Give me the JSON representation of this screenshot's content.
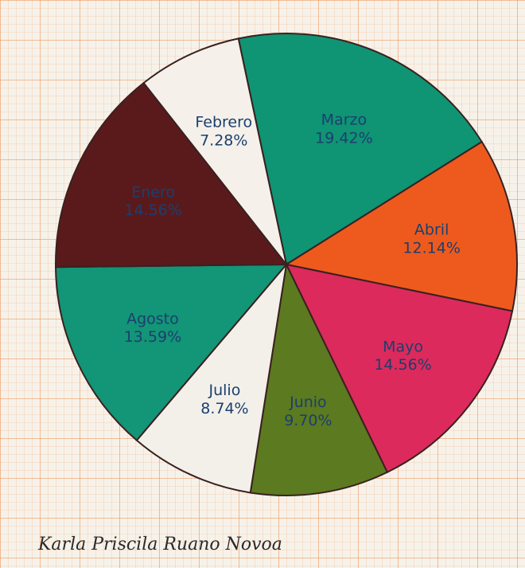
{
  "chart_data": {
    "type": "pie",
    "title": "",
    "slices": [
      {
        "label": "Marzo",
        "percent_text": "19.42%",
        "value": 19.42,
        "color": "#0f9474"
      },
      {
        "label": "Abril",
        "percent_text": "12.14%",
        "value": 12.14,
        "color": "#ee5a1e"
      },
      {
        "label": "Mayo",
        "percent_text": "14.56%",
        "value": 14.56,
        "color": "#dc2a5c"
      },
      {
        "label": "Junio",
        "percent_text": "9.70%",
        "value": 9.7,
        "color": "#5c7a1f"
      },
      {
        "label": "Julio",
        "percent_text": "8.74%",
        "value": 8.74,
        "color": "#f3f0ea"
      },
      {
        "label": "Agosto",
        "percent_text": "13.59%",
        "value": 13.59,
        "color": "#139577"
      },
      {
        "label": "Enero",
        "percent_text": "14.56%",
        "value": 14.56,
        "color": "#5a1a1c"
      },
      {
        "label": "Febrero",
        "percent_text": "7.28%",
        "value": 7.28,
        "color": "#f5f1ea"
      }
    ]
  },
  "author": "Karla Priscila Ruano Novoa"
}
